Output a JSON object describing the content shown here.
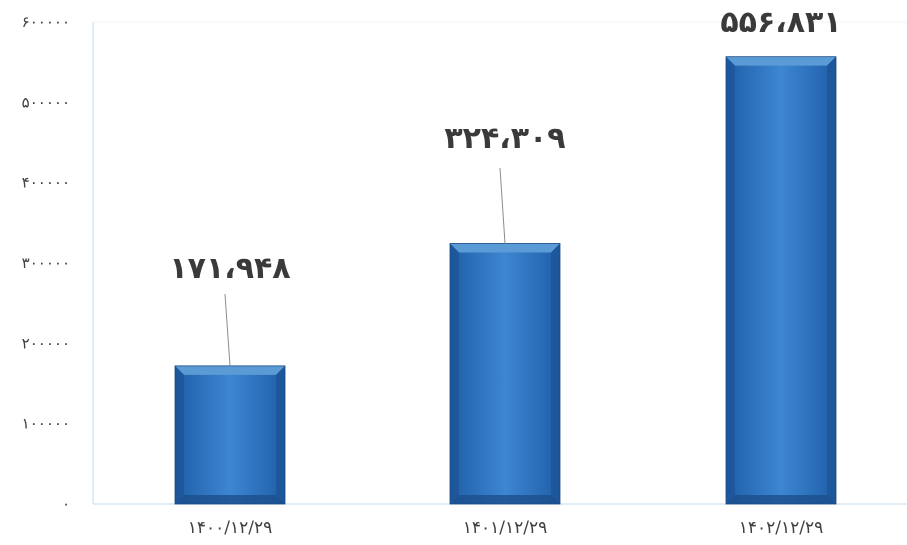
{
  "chart_data": {
    "type": "bar",
    "title": "",
    "xlabel": "",
    "ylabel": "",
    "categories": [
      "۱۴۰۰/۱۲/۲۹",
      "۱۴۰۱/۱۲/۲۹",
      "۱۴۰۲/۱۲/۲۹"
    ],
    "values": [
      171948,
      324309,
      556831
    ],
    "value_labels": [
      "۱۷۱،۹۴۸",
      "۳۲۴،۳۰۹",
      "۵۵۶،۸۳۱"
    ],
    "ylim": [
      0,
      600000
    ],
    "yticks": [
      0,
      100000,
      200000,
      300000,
      400000,
      500000,
      600000
    ],
    "ytick_labels": [
      "۰",
      "۱۰۰۰۰۰",
      "۲۰۰۰۰۰",
      "۳۰۰۰۰۰",
      "۴۰۰۰۰۰",
      "۵۰۰۰۰۰",
      "۶۰۰۰۰۰"
    ],
    "grid": false,
    "legend": "none",
    "colors": {
      "bar_light": "#5b9bd5",
      "bar_mid": "#2f75c1",
      "bar_dark": "#1c4f8c",
      "axis": "#cfe0ef",
      "leader": "#8c8c8c"
    }
  }
}
